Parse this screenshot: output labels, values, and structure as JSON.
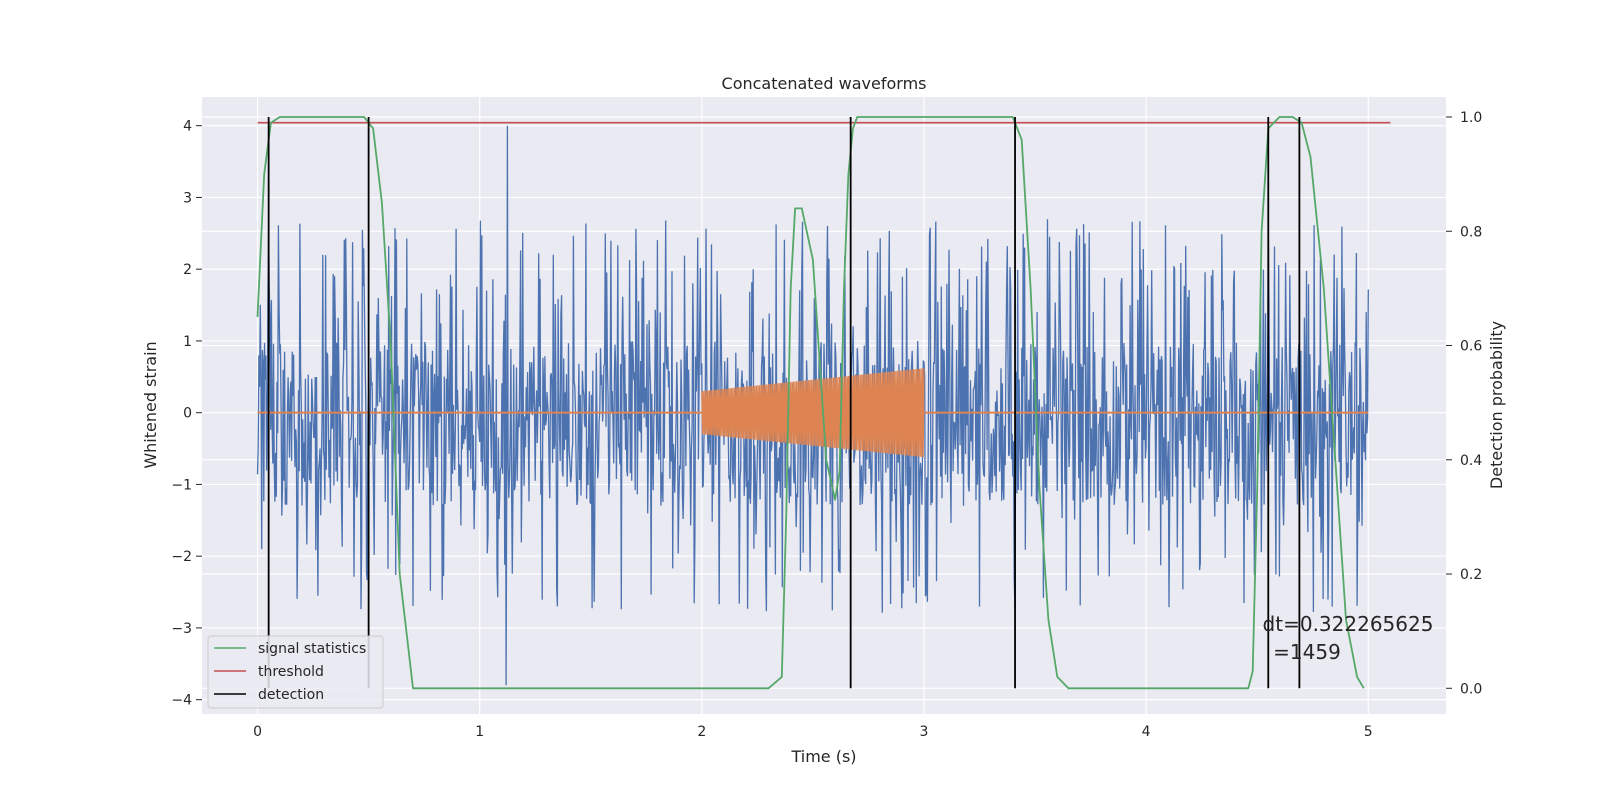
{
  "chart_data": {
    "type": "line",
    "title": "Concatenated waveforms",
    "xlabel": "Time (s)",
    "ylabel": "Whitened strain",
    "y2label": "Detection probability",
    "xlim": [
      -0.25,
      5.35
    ],
    "ylim": [
      -4.2,
      4.4
    ],
    "y2lim": [
      -0.045,
      1.035
    ],
    "x_ticks": [
      0,
      1,
      2,
      3,
      4,
      5
    ],
    "y_ticks": [
      -4,
      -3,
      -2,
      -1,
      0,
      1,
      2,
      3,
      4
    ],
    "y2_ticks": [
      0.0,
      0.2,
      0.4,
      0.6,
      0.8,
      1.0
    ],
    "x_tick_labels": [
      "0",
      "1",
      "2",
      "3",
      "4",
      "5"
    ],
    "y_tick_labels": [
      "−4",
      "−3",
      "−2",
      "−1",
      "0",
      "1",
      "2",
      "3",
      "4"
    ],
    "y2_tick_labels": [
      "0.0",
      "0.2",
      "0.4",
      "0.6",
      "0.8",
      "1.0"
    ],
    "grid": true,
    "background": "#eaeaf2",
    "colors": {
      "strain": "#4c72b0",
      "injection": "#dd8452",
      "signal": "#55a868",
      "threshold": "#c44e52",
      "detection": "#000000"
    },
    "strain_series": {
      "x_range": [
        0,
        5
      ],
      "typical_envelope": [
        -1.3,
        1.0
      ],
      "max_peak": 4.0,
      "min_peak": -3.8
    },
    "injection_series": {
      "x_range": [
        2.0,
        3.0
      ],
      "amplitude_start": 0.3,
      "amplitude_end": 0.62,
      "baseline": 0
    },
    "signal_statistics": {
      "x": [
        0.0,
        0.03,
        0.06,
        0.1,
        0.2,
        0.4,
        0.48,
        0.52,
        0.56,
        0.6,
        0.64,
        0.7,
        1.0,
        1.5,
        2.0,
        2.3,
        2.36,
        2.38,
        2.4,
        2.42,
        2.45,
        2.5,
        2.56,
        2.6,
        2.62,
        2.64,
        2.66,
        2.68,
        2.7,
        2.8,
        3.2,
        3.4,
        3.44,
        3.48,
        3.52,
        3.56,
        3.6,
        3.65,
        4.0,
        4.46,
        4.48,
        4.5,
        4.52,
        4.55,
        4.6,
        4.66,
        4.7,
        4.74,
        4.8,
        4.86,
        4.9,
        4.95,
        4.98
      ],
      "y": [
        0.65,
        0.9,
        0.99,
        1.0,
        1.0,
        1.0,
        1.0,
        0.98,
        0.85,
        0.6,
        0.2,
        0.0,
        0.0,
        0.0,
        0.0,
        0.0,
        0.02,
        0.3,
        0.7,
        0.84,
        0.84,
        0.75,
        0.4,
        0.33,
        0.38,
        0.7,
        0.9,
        0.98,
        1.0,
        1.0,
        1.0,
        1.0,
        0.96,
        0.7,
        0.35,
        0.12,
        0.02,
        0.0,
        0.0,
        0.0,
        0.03,
        0.35,
        0.8,
        0.98,
        1.0,
        1.0,
        0.99,
        0.93,
        0.7,
        0.35,
        0.12,
        0.02,
        0.0
      ]
    },
    "threshold": {
      "value": 0.99,
      "x_range": [
        0.0,
        5.1
      ]
    },
    "detections": [
      0.05,
      0.5,
      2.67,
      3.41,
      4.55,
      4.69
    ],
    "legend": {
      "position": "lower-left",
      "entries": [
        {
          "label": "signal statistics",
          "color": "#55a868"
        },
        {
          "label": "threshold",
          "color": "#c44e52"
        },
        {
          "label": "detection",
          "color": "#000000"
        }
      ]
    },
    "annotations": {
      "line1": "dt=0.322265625",
      "line2": "=1459"
    }
  }
}
